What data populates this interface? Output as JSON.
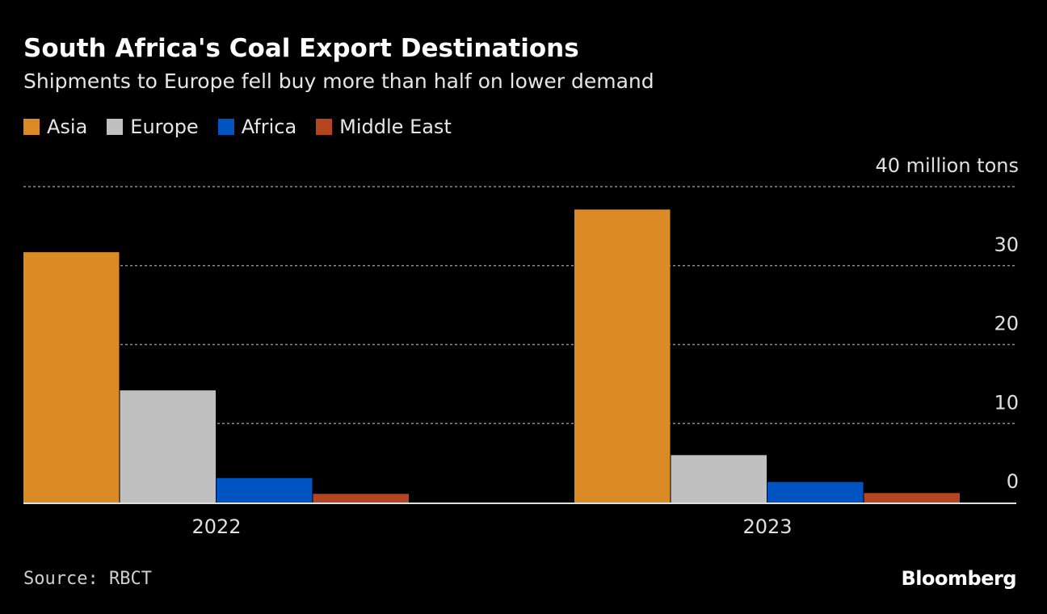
{
  "chart_data": {
    "type": "bar",
    "title": "South Africa's Coal Export Destinations",
    "subtitle": "Shipments to Europe fell buy more than half on lower demand",
    "categories": [
      "2022",
      "2023"
    ],
    "series": [
      {
        "name": "Asia",
        "color": "#dc8a26",
        "values": [
          31.7,
          37.1
        ]
      },
      {
        "name": "Europe",
        "color": "#c0c0c0",
        "values": [
          14.2,
          6.0
        ]
      },
      {
        "name": "Africa",
        "color": "#0054c2",
        "values": [
          3.1,
          2.6
        ]
      },
      {
        "name": "Middle East",
        "color": "#b54421",
        "values": [
          1.1,
          1.2
        ]
      }
    ],
    "ylim": [
      0,
      40
    ],
    "yticks": [
      0,
      10,
      20,
      30,
      40
    ],
    "ytick_labels": [
      "0",
      "10",
      "20",
      "30",
      "40 million tons"
    ],
    "ylabel": "",
    "xlabel": "",
    "grid": true,
    "legend_position": "top-left",
    "source": "Source: RBCT"
  },
  "logo": "Bloomberg"
}
